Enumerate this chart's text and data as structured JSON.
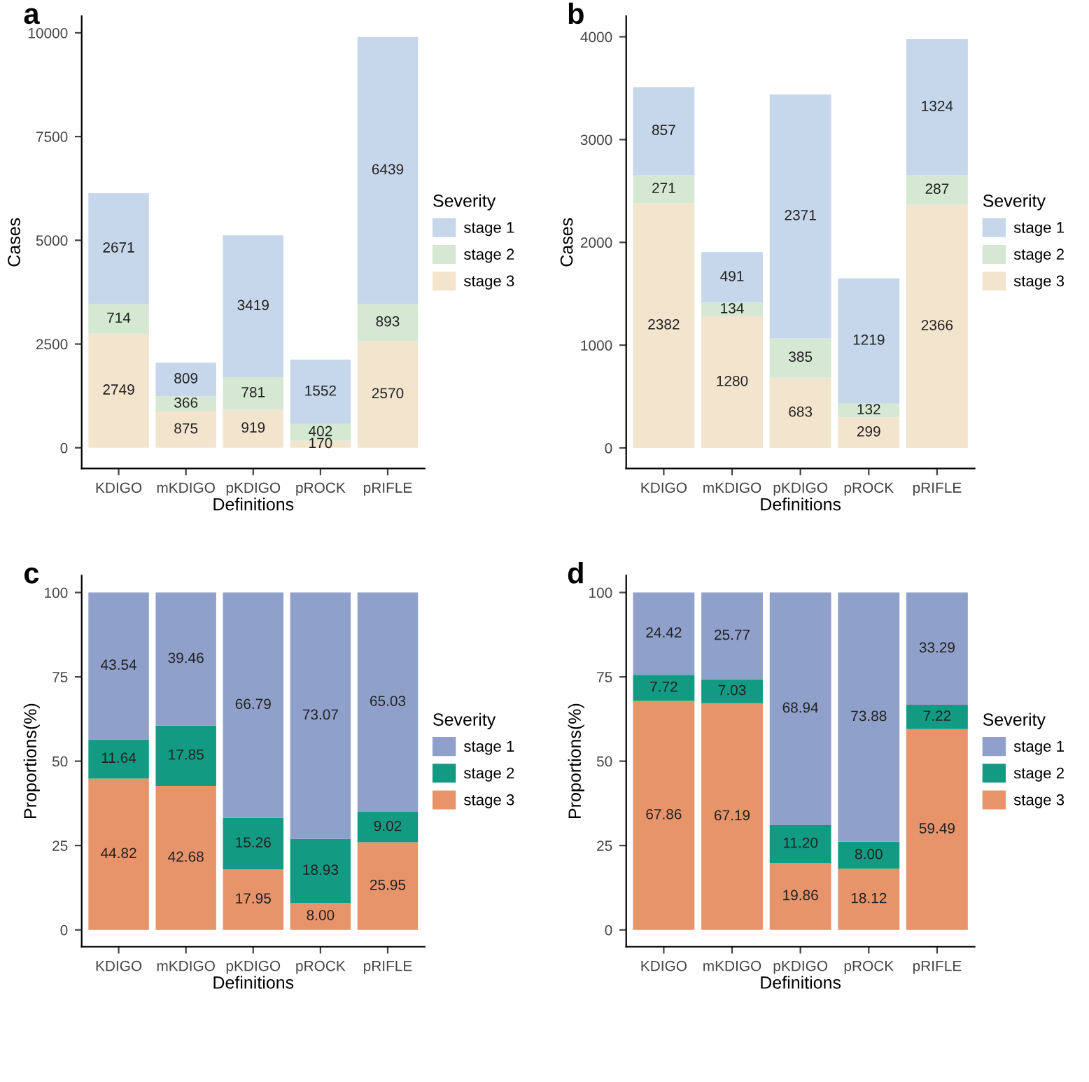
{
  "chart_data": [
    {
      "type": "bar",
      "title": "a",
      "xlabel": "Definitions",
      "ylabel": "Cases",
      "legend_title": "Severity",
      "legend": "right",
      "stacked": true,
      "data_labels": true,
      "grid": false,
      "categories": [
        "KDIGO",
        "mKDIGO",
        "pKDIGO",
        "pROCK",
        "pRIFLE"
      ],
      "ylim": [
        -500,
        10400
      ],
      "yticks": [
        0,
        2500,
        5000,
        7500,
        10000
      ],
      "series": [
        {
          "name": "stage 3",
          "color": "#f3e4cd",
          "values": [
            2749,
            875,
            919,
            170,
            2570
          ]
        },
        {
          "name": "stage 2",
          "color": "#d5e8d2",
          "values": [
            714,
            366,
            781,
            402,
            893
          ]
        },
        {
          "name": "stage 1",
          "color": "#c6d6eb",
          "values": [
            2671,
            809,
            3419,
            1552,
            6439
          ]
        }
      ]
    },
    {
      "type": "bar",
      "title": "b",
      "xlabel": "Definitions",
      "ylabel": "Cases",
      "legend_title": "Severity",
      "legend": "right",
      "stacked": true,
      "data_labels": true,
      "grid": false,
      "categories": [
        "KDIGO",
        "mKDIGO",
        "pKDIGO",
        "pROCK",
        "pRIFLE"
      ],
      "ylim": [
        -200,
        4200
      ],
      "yticks": [
        0,
        1000,
        2000,
        3000,
        4000
      ],
      "series": [
        {
          "name": "stage 3",
          "color": "#f3e4cd",
          "values": [
            2382,
            1280,
            683,
            299,
            2366
          ]
        },
        {
          "name": "stage 2",
          "color": "#d5e8d2",
          "values": [
            271,
            134,
            385,
            132,
            287
          ]
        },
        {
          "name": "stage 1",
          "color": "#c6d6eb",
          "values": [
            857,
            491,
            2371,
            1219,
            1324
          ]
        }
      ]
    },
    {
      "type": "bar",
      "title": "c",
      "xlabel": "Definitions",
      "ylabel": "Proportions(%)",
      "legend_title": "Severity",
      "legend": "right",
      "stacked": true,
      "grid": false,
      "categories": [
        "KDIGO",
        "mKDIGO",
        "pKDIGO",
        "pROCK",
        "pRIFLE"
      ],
      "ylim": [
        -5,
        105
      ],
      "yticks": [
        0,
        25,
        50,
        75,
        100
      ],
      "series": [
        {
          "name": "stage 3",
          "color": "#e8946b",
          "values": [
            44.82,
            42.68,
            17.95,
            8.0,
            25.95
          ],
          "value_labels": [
            "44.82",
            "42.68",
            "17.95",
            "8.00",
            "25.95"
          ]
        },
        {
          "name": "stage 2",
          "color": "#129a82",
          "values": [
            11.64,
            17.85,
            15.26,
            18.93,
            9.02
          ],
          "value_labels": [
            "11.64",
            "17.85",
            "15.26",
            "18.93",
            "9.02"
          ]
        },
        {
          "name": "stage 1",
          "color": "#8fa0cb",
          "values": [
            43.54,
            39.46,
            66.79,
            73.07,
            65.03
          ],
          "value_labels": [
            "43.54",
            "39.46",
            "66.79",
            "73.07",
            "65.03"
          ]
        }
      ]
    },
    {
      "type": "bar",
      "title": "d",
      "xlabel": "Definitions",
      "ylabel": "Proportions(%)",
      "legend_title": "Severity",
      "legend": "right",
      "stacked": true,
      "grid": false,
      "categories": [
        "KDIGO",
        "mKDIGO",
        "pKDIGO",
        "pROCK",
        "pRIFLE"
      ],
      "ylim": [
        -5,
        105
      ],
      "yticks": [
        0,
        25,
        50,
        75,
        100
      ],
      "series": [
        {
          "name": "stage 3",
          "color": "#e8946b",
          "values": [
            67.86,
            67.19,
            19.86,
            18.12,
            59.49
          ],
          "value_labels": [
            "67.86",
            "67.19",
            "19.86",
            "18.12",
            "59.49"
          ]
        },
        {
          "name": "stage 2",
          "color": "#129a82",
          "values": [
            7.72,
            7.03,
            11.2,
            8.0,
            7.22
          ],
          "value_labels": [
            "7.72",
            "7.03",
            "11.20",
            "8.00",
            "7.22"
          ]
        },
        {
          "name": "stage 1",
          "color": "#8fa0cb",
          "values": [
            24.42,
            25.77,
            68.94,
            73.88,
            33.29
          ],
          "value_labels": [
            "24.42",
            "25.77",
            "68.94",
            "73.88",
            "33.29"
          ]
        }
      ]
    }
  ]
}
